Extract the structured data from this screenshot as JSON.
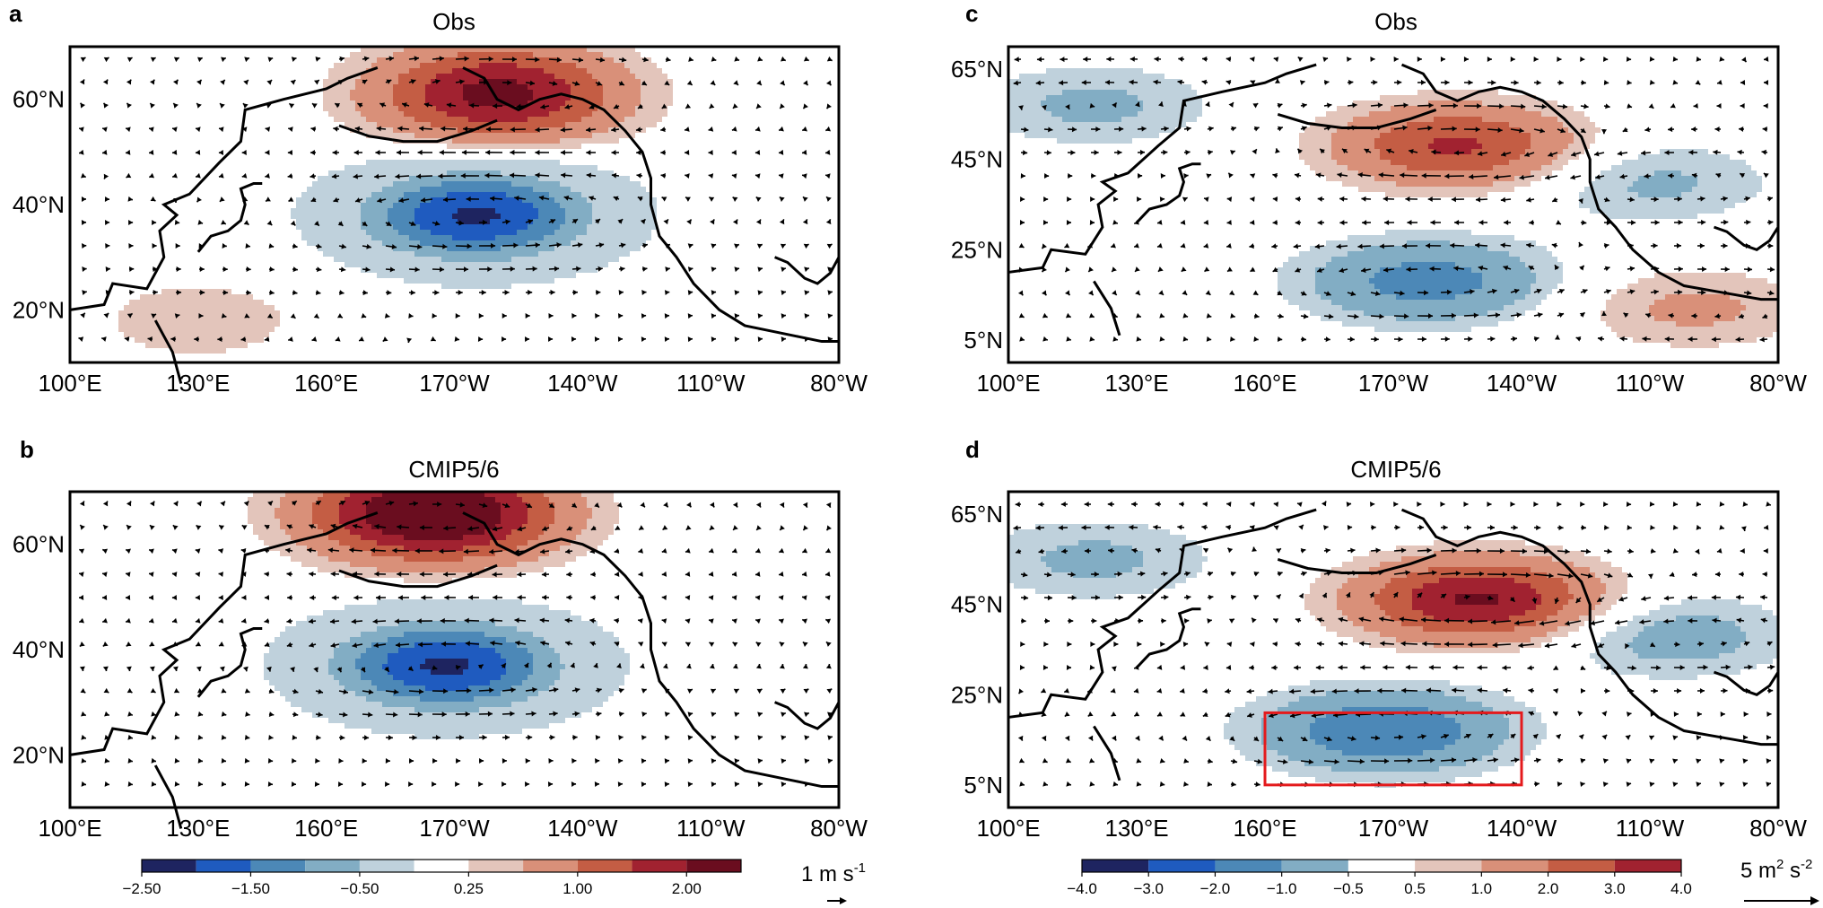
{
  "figure": {
    "panels": [
      {
        "id": "a",
        "letter": "a",
        "title": "Obs",
        "variable": "wind"
      },
      {
        "id": "b",
        "letter": "b",
        "title": "CMIP5/6",
        "variable": "wind"
      },
      {
        "id": "c",
        "letter": "c",
        "title": "Obs",
        "variable": "flux"
      },
      {
        "id": "d",
        "letter": "d",
        "title": "CMIP5/6",
        "variable": "flux"
      }
    ],
    "colors": {
      "neg": [
        "#1e2460",
        "#1f5bbf",
        "#4c88b7",
        "#82adc4",
        "#bfd1dc"
      ],
      "neutral": "#ffffff",
      "pos": [
        "#e3c5bb",
        "#d99079",
        "#c45d44",
        "#a12230",
        "#6a0d1f"
      ],
      "box": "#e41a1c",
      "coast": "#000000"
    }
  },
  "chart_data": [
    {
      "panel": "a",
      "type": "contour-map",
      "title": "Obs",
      "lon_ticks": [
        "100°E",
        "130°E",
        "160°E",
        "170°W",
        "140°W",
        "110°W",
        "80°W"
      ],
      "lat_ticks": [
        "60°N",
        "40°N",
        "20°N"
      ],
      "lon_range": [
        100,
        280
      ],
      "lat_range": [
        10,
        70
      ],
      "features": [
        {
          "sign": "positive",
          "center_lon": 200,
          "center_lat": 61,
          "peak": 2.2,
          "description_level": "max"
        },
        {
          "sign": "negative",
          "center_lon": 195,
          "center_lat": 38,
          "peak": -2.6,
          "description_level": "min"
        },
        {
          "sign": "positive",
          "center_lon": 130,
          "center_lat": 18,
          "peak": 0.4
        }
      ],
      "vector_reference": {
        "magnitude": 1,
        "unit": "m s-1"
      }
    },
    {
      "panel": "b",
      "type": "contour-map",
      "title": "CMIP5/6",
      "lon_ticks": [
        "100°E",
        "130°E",
        "160°E",
        "170°W",
        "140°W",
        "110°W",
        "80°W"
      ],
      "lat_ticks": [
        "60°N",
        "40°N",
        "20°N"
      ],
      "lon_range": [
        100,
        280
      ],
      "lat_range": [
        10,
        70
      ],
      "features": [
        {
          "sign": "positive",
          "center_lon": 185,
          "center_lat": 66,
          "peak": 2.8
        },
        {
          "sign": "negative",
          "center_lon": 188,
          "center_lat": 37,
          "peak": -2.6
        }
      ]
    },
    {
      "panel": "c",
      "type": "contour-map",
      "title": "Obs",
      "lon_ticks": [
        "100°E",
        "130°E",
        "160°E",
        "170°W",
        "140°W",
        "110°W",
        "80°W"
      ],
      "lat_ticks": [
        "65°N",
        "45°N",
        "25°N",
        "5°N"
      ],
      "lon_range": [
        100,
        280
      ],
      "lat_range": [
        0,
        70
      ],
      "features": [
        {
          "sign": "positive",
          "center_lon": 205,
          "center_lat": 48,
          "peak": 3.2
        },
        {
          "sign": "negative",
          "center_lon": 198,
          "center_lat": 18,
          "peak": -2.5
        },
        {
          "sign": "negative",
          "center_lon": 120,
          "center_lat": 57,
          "peak": -1.2
        },
        {
          "sign": "negative",
          "center_lon": 250,
          "center_lat": 40,
          "peak": -1.2
        },
        {
          "sign": "positive",
          "center_lon": 260,
          "center_lat": 12,
          "peak": 1.2
        }
      ],
      "vector_reference": {
        "magnitude": 5,
        "unit": "m2 s-2"
      }
    },
    {
      "panel": "d",
      "type": "contour-map",
      "title": "CMIP5/6",
      "lon_ticks": [
        "100°E",
        "130°E",
        "160°E",
        "170°W",
        "140°W",
        "110°W",
        "80°W"
      ],
      "lat_ticks": [
        "65°N",
        "45°N",
        "25°N",
        "5°N"
      ],
      "lon_range": [
        100,
        280
      ],
      "lat_range": [
        0,
        70
      ],
      "features": [
        {
          "sign": "positive",
          "center_lon": 210,
          "center_lat": 46,
          "peak": 4.2
        },
        {
          "sign": "negative",
          "center_lon": 188,
          "center_lat": 17,
          "peak": -3.0
        },
        {
          "sign": "negative",
          "center_lon": 120,
          "center_lat": 55,
          "peak": -1.2
        },
        {
          "sign": "negative",
          "center_lon": 255,
          "center_lat": 38,
          "peak": -1.5
        }
      ],
      "box": {
        "lon_min": 160,
        "lon_max": 220,
        "lat_min": 5,
        "lat_max": 21
      }
    }
  ],
  "colorbars": [
    {
      "name": "wind",
      "levels": [
        -2.5,
        -2.0,
        -1.5,
        -1.0,
        -0.5,
        -0.25,
        0.25,
        0.5,
        1.0,
        1.5,
        2.0,
        2.5
      ],
      "tick_labels": [
        "−2.50",
        "−1.50",
        "−0.50",
        "0.25",
        "1.00",
        "2.00"
      ],
      "tick_levels": [
        -2.5,
        -1.5,
        -0.5,
        0.25,
        1.0,
        2.0
      ],
      "reference_label_text": "1 m s",
      "reference_label_sup": "-1"
    },
    {
      "name": "flux",
      "levels": [
        -4.0,
        -3.0,
        -2.0,
        -1.0,
        -0.5,
        0.5,
        1.0,
        2.0,
        3.0,
        4.0
      ],
      "tick_labels": [
        "−4.0",
        "−3.0",
        "−2.0",
        "−1.0",
        "−0.5",
        "0.5",
        "1.0",
        "2.0",
        "3.0",
        "4.0"
      ],
      "tick_levels": [
        -4.0,
        -3.0,
        -2.0,
        -1.0,
        -0.5,
        0.5,
        1.0,
        2.0,
        3.0,
        4.0
      ],
      "reference_label_text": "5 m",
      "reference_label_sup1": "2",
      "reference_label_mid": " s",
      "reference_label_sup2": "-2"
    }
  ]
}
